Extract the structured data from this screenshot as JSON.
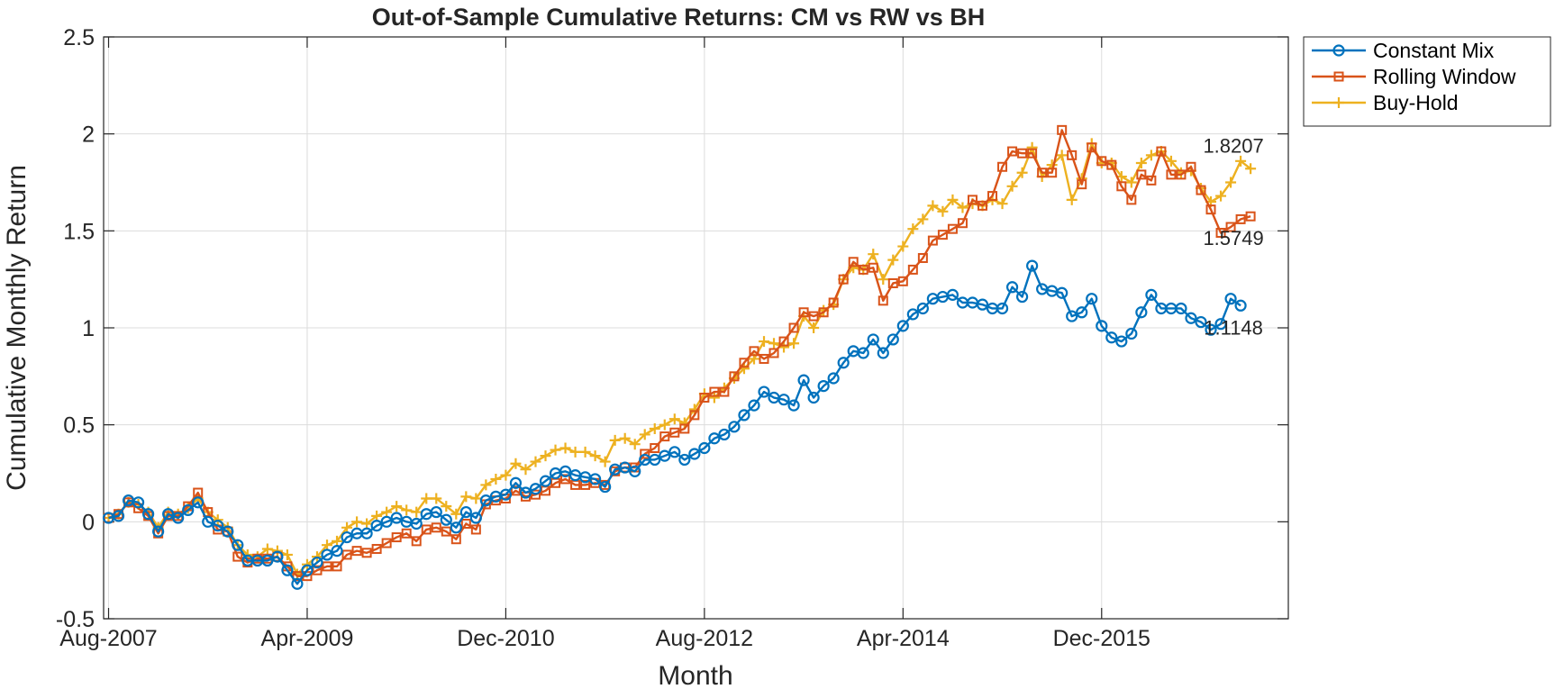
{
  "chart_data": {
    "type": "line",
    "title": "Out-of-Sample Cumulative Returns: CM vs RW vs BH",
    "xlabel": "Month",
    "ylabel": "Cumulative Monthly Return",
    "ylim": [
      -0.5,
      2.5
    ],
    "yticks": [
      -0.5,
      0,
      0.5,
      1,
      1.5,
      2,
      2.5
    ],
    "ytick_labels": [
      "-0.5",
      "0",
      "0.5",
      "1",
      "1.5",
      "2",
      "2.5"
    ],
    "xtick_labels": [
      "Aug-2007",
      "Apr-2009",
      "Dec-2010",
      "Aug-2012",
      "Apr-2014",
      "Dec-2015"
    ],
    "xtick_index": [
      0,
      20,
      40,
      60,
      80,
      100
    ],
    "x_index_range": [
      -0.5,
      118.8
    ],
    "grid": true,
    "legend_position": "outside-top-right",
    "series": [
      {
        "name": "Constant Mix",
        "color": "#0072BD",
        "marker": "circle",
        "values": [
          0.02,
          0.03,
          0.11,
          0.1,
          0.04,
          -0.05,
          0.04,
          0.02,
          0.06,
          0.1,
          0.0,
          -0.02,
          -0.05,
          -0.12,
          -0.2,
          -0.2,
          -0.2,
          -0.18,
          -0.25,
          -0.32,
          -0.25,
          -0.21,
          -0.17,
          -0.15,
          -0.08,
          -0.06,
          -0.06,
          -0.02,
          0.0,
          0.02,
          0.0,
          -0.01,
          0.04,
          0.05,
          0.01,
          -0.03,
          0.05,
          0.02,
          0.11,
          0.13,
          0.14,
          0.2,
          0.15,
          0.17,
          0.21,
          0.25,
          0.26,
          0.24,
          0.23,
          0.22,
          0.18,
          0.27,
          0.28,
          0.26,
          0.32,
          0.32,
          0.34,
          0.36,
          0.32,
          0.35,
          0.38,
          0.43,
          0.45,
          0.49,
          0.55,
          0.6,
          0.67,
          0.64,
          0.63,
          0.6,
          0.73,
          0.64,
          0.7,
          0.74,
          0.82,
          0.88,
          0.87,
          0.94,
          0.87,
          0.94,
          1.01,
          1.07,
          1.1,
          1.15,
          1.16,
          1.17,
          1.13,
          1.13,
          1.12,
          1.1,
          1.1,
          1.21,
          1.16,
          1.32,
          1.2,
          1.19,
          1.18,
          1.06,
          1.08,
          1.15,
          1.01,
          0.95,
          0.93,
          0.97,
          1.08,
          1.17,
          1.1,
          1.1,
          1.1,
          1.05,
          1.03,
          0.99,
          1.02,
          1.15,
          1.1148
        ]
      },
      {
        "name": "Rolling Window",
        "color": "#D95319",
        "marker": "square",
        "values": [
          0.02,
          0.04,
          0.1,
          0.07,
          0.03,
          -0.06,
          0.03,
          0.03,
          0.08,
          0.15,
          0.05,
          -0.04,
          -0.05,
          -0.18,
          -0.21,
          -0.19,
          -0.19,
          -0.18,
          -0.23,
          -0.28,
          -0.28,
          -0.25,
          -0.23,
          -0.23,
          -0.17,
          -0.15,
          -0.16,
          -0.14,
          -0.11,
          -0.08,
          -0.06,
          -0.1,
          -0.04,
          -0.03,
          -0.05,
          -0.09,
          -0.01,
          -0.04,
          0.09,
          0.11,
          0.12,
          0.16,
          0.13,
          0.14,
          0.16,
          0.2,
          0.22,
          0.19,
          0.19,
          0.2,
          0.19,
          0.26,
          0.28,
          0.28,
          0.35,
          0.38,
          0.44,
          0.46,
          0.48,
          0.55,
          0.64,
          0.67,
          0.67,
          0.75,
          0.82,
          0.88,
          0.84,
          0.87,
          0.93,
          1.0,
          1.08,
          1.06,
          1.08,
          1.13,
          1.25,
          1.34,
          1.3,
          1.31,
          1.14,
          1.23,
          1.24,
          1.3,
          1.36,
          1.45,
          1.48,
          1.51,
          1.54,
          1.66,
          1.63,
          1.68,
          1.83,
          1.91,
          1.9,
          1.9,
          1.8,
          1.8,
          2.02,
          1.89,
          1.74,
          1.93,
          1.86,
          1.84,
          1.73,
          1.66,
          1.79,
          1.76,
          1.91,
          1.79,
          1.79,
          1.83,
          1.71,
          1.61,
          1.49,
          1.52,
          1.56,
          1.5749
        ]
      },
      {
        "name": "Buy-Hold",
        "color": "#EDB120",
        "marker": "plus",
        "values": [
          0.02,
          0.04,
          0.1,
          0.09,
          0.05,
          -0.03,
          0.05,
          0.04,
          0.07,
          0.12,
          0.05,
          0.01,
          -0.03,
          -0.12,
          -0.17,
          -0.18,
          -0.14,
          -0.15,
          -0.17,
          -0.27,
          -0.22,
          -0.18,
          -0.12,
          -0.1,
          -0.03,
          0.0,
          -0.01,
          0.03,
          0.05,
          0.08,
          0.06,
          0.05,
          0.12,
          0.12,
          0.08,
          0.04,
          0.13,
          0.12,
          0.19,
          0.22,
          0.24,
          0.3,
          0.27,
          0.31,
          0.34,
          0.37,
          0.38,
          0.36,
          0.36,
          0.34,
          0.31,
          0.42,
          0.43,
          0.4,
          0.45,
          0.48,
          0.5,
          0.53,
          0.51,
          0.58,
          0.66,
          0.64,
          0.69,
          0.74,
          0.79,
          0.84,
          0.93,
          0.92,
          0.9,
          0.92,
          1.06,
          1.0,
          1.09,
          1.12,
          1.25,
          1.31,
          1.3,
          1.38,
          1.25,
          1.35,
          1.42,
          1.51,
          1.56,
          1.63,
          1.6,
          1.66,
          1.62,
          1.64,
          1.63,
          1.66,
          1.64,
          1.73,
          1.8,
          1.93,
          1.78,
          1.84,
          1.89,
          1.66,
          1.77,
          1.95,
          1.85,
          1.85,
          1.78,
          1.75,
          1.85,
          1.89,
          1.91,
          1.86,
          1.8,
          1.81,
          1.72,
          1.65,
          1.68,
          1.75,
          1.86,
          1.8207
        ]
      }
    ],
    "annotations": [
      {
        "series": "Buy-Hold",
        "text": "1.8207",
        "value": 1.8207,
        "place": "above"
      },
      {
        "series": "Rolling Window",
        "text": "1.5749",
        "value": 1.5749,
        "place": "below"
      },
      {
        "series": "Constant Mix",
        "text": "1.1148",
        "value": 1.1148,
        "place": "below"
      }
    ]
  }
}
